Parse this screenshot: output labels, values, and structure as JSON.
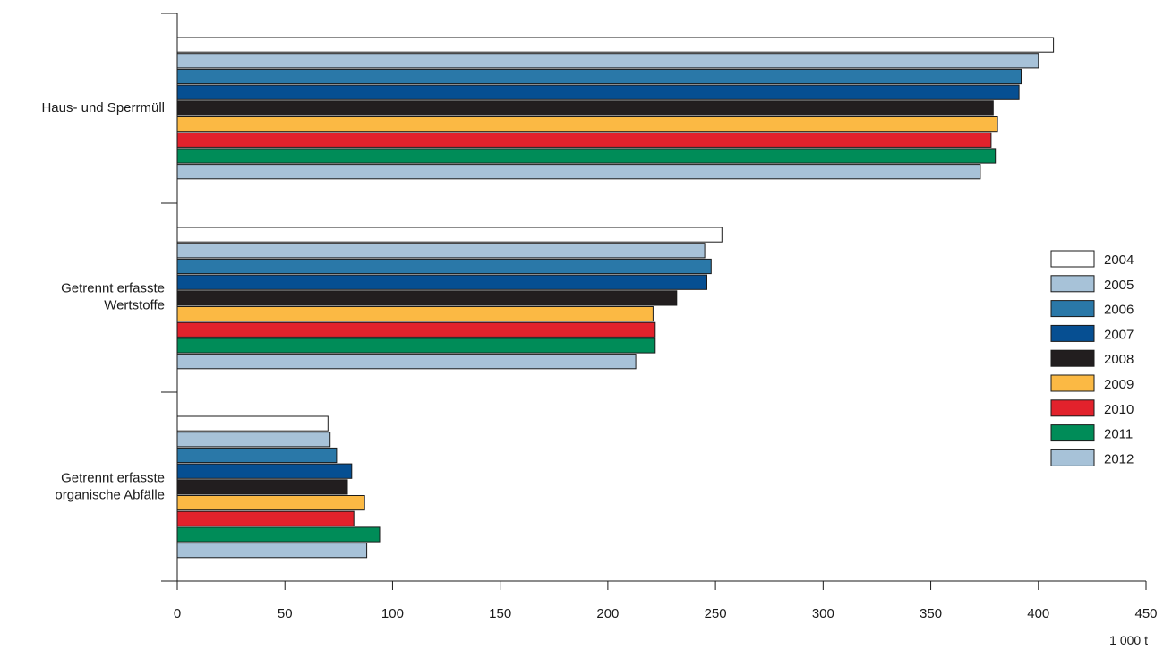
{
  "chart_data": {
    "type": "bar",
    "orientation": "horizontal",
    "categories": [
      [
        "Haus- und Sperrmüll"
      ],
      [
        "Getrennt erfasste",
        "Wertstoffe"
      ],
      [
        "Getrennt erfasste",
        "organische Abfälle"
      ]
    ],
    "series": [
      {
        "name": "2004",
        "color": "#ffffff",
        "values": [
          407,
          253,
          70
        ]
      },
      {
        "name": "2005",
        "color": "#a7c2d8",
        "values": [
          400,
          245,
          71
        ]
      },
      {
        "name": "2006",
        "color": "#2a78a8",
        "values": [
          392,
          248,
          74
        ]
      },
      {
        "name": "2007",
        "color": "#064f92",
        "values": [
          391,
          246,
          81
        ]
      },
      {
        "name": "2008",
        "color": "#221e1f",
        "values": [
          379,
          232,
          79
        ]
      },
      {
        "name": "2009",
        "color": "#fbb944",
        "values": [
          381,
          221,
          87
        ]
      },
      {
        "name": "2010",
        "color": "#e2222c",
        "values": [
          378,
          222,
          82
        ]
      },
      {
        "name": "2011",
        "color": "#008c58",
        "values": [
          380,
          222,
          94
        ]
      },
      {
        "name": "2012",
        "color": "#a7c2d8",
        "values": [
          373,
          213,
          88
        ]
      }
    ],
    "xticks": [
      0,
      50,
      100,
      150,
      200,
      250,
      300,
      350,
      400,
      450
    ],
    "xlim": [
      0,
      450
    ],
    "unit": "1 000 t",
    "legend_position": "right",
    "grid": false
  }
}
